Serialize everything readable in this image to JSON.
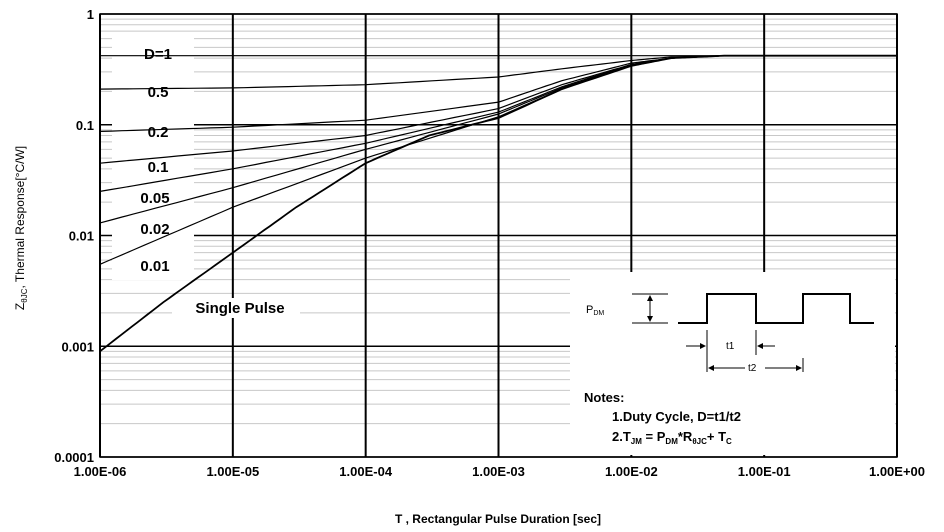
{
  "chart_data": {
    "type": "line",
    "x_scale": "log",
    "y_scale": "log",
    "xlim": [
      1e-06,
      1
    ],
    "ylim": [
      0.0001,
      1
    ],
    "x_ticks": [
      "1.00E-06",
      "1.00E-05",
      "1.00E-04",
      "1.00E-03",
      "1.00E-02",
      "1.00E-01",
      "1.00E+00"
    ],
    "y_ticks": [
      "0.0001",
      "0.001",
      "0.01",
      "0.1",
      "1"
    ],
    "xlabel": "T , Rectangular Pulse Duration [sec]",
    "ylabel": "Z",
    "ylabel_sub": "θJC",
    "ylabel_rest": ", Thermal Response[°C/W]",
    "grid": true,
    "series": [
      {
        "name": "D=1",
        "x": [
          1e-06,
          0.0001,
          0.01,
          1
        ],
        "y": [
          0.42,
          0.42,
          0.42,
          0.42
        ]
      },
      {
        "name": "0.5",
        "x": [
          1e-06,
          1e-05,
          0.0001,
          0.001,
          0.003,
          0.01,
          0.02,
          0.05,
          1
        ],
        "y": [
          0.21,
          0.215,
          0.23,
          0.27,
          0.32,
          0.38,
          0.41,
          0.42,
          0.42
        ]
      },
      {
        "name": "0.2",
        "x": [
          1e-06,
          1e-05,
          0.0001,
          0.001,
          0.003,
          0.01,
          0.02,
          0.05,
          1
        ],
        "y": [
          0.087,
          0.095,
          0.11,
          0.16,
          0.25,
          0.36,
          0.4,
          0.42,
          0.42
        ]
      },
      {
        "name": "0.1",
        "x": [
          1e-06,
          1e-05,
          0.0001,
          0.001,
          0.003,
          0.01,
          0.02,
          0.05,
          1
        ],
        "y": [
          0.045,
          0.058,
          0.08,
          0.14,
          0.23,
          0.35,
          0.4,
          0.42,
          0.42
        ]
      },
      {
        "name": "0.05",
        "x": [
          1e-06,
          1e-05,
          0.0001,
          0.001,
          0.003,
          0.01,
          0.02,
          0.05,
          1
        ],
        "y": [
          0.025,
          0.04,
          0.068,
          0.13,
          0.22,
          0.35,
          0.4,
          0.42,
          0.42
        ]
      },
      {
        "name": "0.02",
        "x": [
          1e-06,
          1e-05,
          0.0001,
          0.001,
          0.003,
          0.01,
          0.02,
          0.05,
          1
        ],
        "y": [
          0.013,
          0.027,
          0.06,
          0.125,
          0.215,
          0.345,
          0.4,
          0.42,
          0.42
        ]
      },
      {
        "name": "0.01",
        "x": [
          1e-06,
          1e-05,
          0.0001,
          0.001,
          0.003,
          0.01,
          0.02,
          0.05,
          1
        ],
        "y": [
          0.0055,
          0.018,
          0.05,
          0.118,
          0.21,
          0.34,
          0.4,
          0.42,
          0.42
        ]
      },
      {
        "name": "Single Pulse",
        "x": [
          1e-06,
          3e-06,
          1e-05,
          3e-05,
          0.0001,
          0.0003,
          0.001,
          0.003,
          0.01,
          0.02,
          0.05,
          1
        ],
        "y": [
          0.0009,
          0.0025,
          0.007,
          0.018,
          0.045,
          0.08,
          0.115,
          0.21,
          0.34,
          0.4,
          0.42,
          0.42
        ]
      }
    ]
  },
  "inset": {
    "pdm_main": "P",
    "pdm_sub": "DM",
    "t1": "t1",
    "t2": "t2",
    "notes_title": "Notes:",
    "note1": "1.Duty  Cycle, D=t1/t2",
    "note2_a": "2.T",
    "note2_a_sub": "JM",
    "note2_b": " = P",
    "note2_b_sub": "DM",
    "note2_c": "*R",
    "note2_c_sub": "θJC",
    "note2_d": "+ T",
    "note2_d_sub": "C"
  }
}
